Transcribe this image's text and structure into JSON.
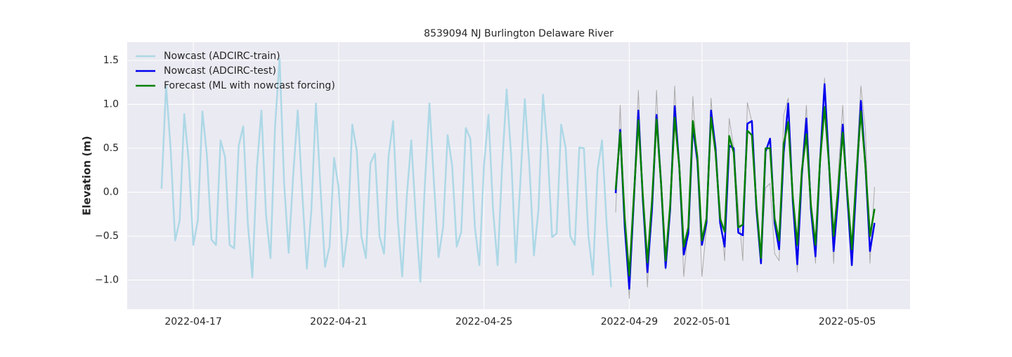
{
  "chart_data": {
    "type": "line",
    "title": "8539094 NJ Burlington Delaware River",
    "ylabel": "Elevation (m)",
    "x": [
      "2022-04-16 03:00",
      "2022-04-16 06:00",
      "2022-04-16 09:00",
      "2022-04-16 12:00",
      "2022-04-16 15:00",
      "2022-04-16 18:00",
      "2022-04-16 21:00",
      "2022-04-17 00:00",
      "2022-04-17 03:00",
      "2022-04-17 06:00",
      "2022-04-17 09:00",
      "2022-04-17 12:00",
      "2022-04-17 15:00",
      "2022-04-17 18:00",
      "2022-04-17 21:00",
      "2022-04-18 00:00",
      "2022-04-18 03:00",
      "2022-04-18 06:00",
      "2022-04-18 09:00",
      "2022-04-18 12:00",
      "2022-04-18 15:00",
      "2022-04-18 18:00",
      "2022-04-18 21:00",
      "2022-04-19 00:00",
      "2022-04-19 03:00",
      "2022-04-19 06:00",
      "2022-04-19 09:00",
      "2022-04-19 12:00",
      "2022-04-19 15:00",
      "2022-04-19 18:00",
      "2022-04-19 21:00",
      "2022-04-20 00:00",
      "2022-04-20 03:00",
      "2022-04-20 06:00",
      "2022-04-20 09:00",
      "2022-04-20 12:00",
      "2022-04-20 15:00",
      "2022-04-20 18:00",
      "2022-04-20 21:00",
      "2022-04-21 00:00",
      "2022-04-21 03:00",
      "2022-04-21 06:00",
      "2022-04-21 09:00",
      "2022-04-21 12:00",
      "2022-04-21 15:00",
      "2022-04-21 18:00",
      "2022-04-21 21:00",
      "2022-04-22 00:00",
      "2022-04-22 03:00",
      "2022-04-22 06:00",
      "2022-04-22 09:00",
      "2022-04-22 12:00",
      "2022-04-22 15:00",
      "2022-04-22 18:00",
      "2022-04-22 21:00",
      "2022-04-23 00:00",
      "2022-04-23 03:00",
      "2022-04-23 06:00",
      "2022-04-23 09:00",
      "2022-04-23 12:00",
      "2022-04-23 15:00",
      "2022-04-23 18:00",
      "2022-04-23 21:00",
      "2022-04-24 00:00",
      "2022-04-24 03:00",
      "2022-04-24 06:00",
      "2022-04-24 09:00",
      "2022-04-24 12:00",
      "2022-04-24 15:00",
      "2022-04-24 18:00",
      "2022-04-24 21:00",
      "2022-04-25 00:00",
      "2022-04-25 03:00",
      "2022-04-25 06:00",
      "2022-04-25 09:00",
      "2022-04-25 12:00",
      "2022-04-25 15:00",
      "2022-04-25 18:00",
      "2022-04-25 21:00",
      "2022-04-26 00:00",
      "2022-04-26 03:00",
      "2022-04-26 06:00",
      "2022-04-26 09:00",
      "2022-04-26 12:00",
      "2022-04-26 15:00",
      "2022-04-26 18:00",
      "2022-04-26 21:00",
      "2022-04-27 00:00",
      "2022-04-27 03:00",
      "2022-04-27 06:00",
      "2022-04-27 09:00",
      "2022-04-27 12:00",
      "2022-04-27 15:00",
      "2022-04-27 18:00",
      "2022-04-27 21:00",
      "2022-04-28 00:00",
      "2022-04-28 03:00",
      "2022-04-28 06:00",
      "2022-04-28 09:00",
      "2022-04-28 12:00",
      "2022-04-28 15:00",
      "2022-04-28 18:00",
      "2022-04-28 21:00",
      "2022-04-29 00:00",
      "2022-04-29 03:00",
      "2022-04-29 06:00",
      "2022-04-29 09:00",
      "2022-04-29 12:00",
      "2022-04-29 15:00",
      "2022-04-29 18:00",
      "2022-04-29 21:00",
      "2022-04-30 00:00",
      "2022-04-30 03:00",
      "2022-04-30 06:00",
      "2022-04-30 09:00",
      "2022-04-30 12:00",
      "2022-04-30 15:00",
      "2022-04-30 18:00",
      "2022-04-30 21:00",
      "2022-05-01 00:00",
      "2022-05-01 03:00",
      "2022-05-01 06:00",
      "2022-05-01 09:00",
      "2022-05-01 12:00",
      "2022-05-01 15:00",
      "2022-05-01 18:00",
      "2022-05-01 21:00",
      "2022-05-02 00:00",
      "2022-05-02 03:00",
      "2022-05-02 06:00",
      "2022-05-02 09:00",
      "2022-05-02 12:00",
      "2022-05-02 15:00",
      "2022-05-02 18:00",
      "2022-05-02 21:00",
      "2022-05-03 00:00",
      "2022-05-03 03:00",
      "2022-05-03 06:00",
      "2022-05-03 09:00",
      "2022-05-03 12:00",
      "2022-05-03 15:00",
      "2022-05-03 18:00",
      "2022-05-03 21:00",
      "2022-05-04 00:00",
      "2022-05-04 03:00",
      "2022-05-04 06:00",
      "2022-05-04 09:00",
      "2022-05-04 12:00",
      "2022-05-04 15:00",
      "2022-05-04 18:00",
      "2022-05-04 21:00",
      "2022-05-05 00:00",
      "2022-05-05 03:00",
      "2022-05-05 06:00",
      "2022-05-05 09:00",
      "2022-05-05 12:00",
      "2022-05-05 15:00",
      "2022-05-05 18:00"
    ],
    "series": [
      {
        "color": "#aaaaaa",
        "values": [
          null,
          null,
          null,
          null,
          null,
          null,
          null,
          null,
          null,
          null,
          null,
          null,
          null,
          null,
          null,
          null,
          null,
          null,
          null,
          null,
          null,
          null,
          null,
          null,
          null,
          null,
          null,
          null,
          null,
          null,
          null,
          null,
          null,
          null,
          null,
          null,
          null,
          null,
          null,
          null,
          null,
          null,
          null,
          null,
          null,
          null,
          null,
          null,
          null,
          null,
          null,
          null,
          null,
          null,
          null,
          null,
          null,
          null,
          null,
          null,
          null,
          null,
          null,
          null,
          null,
          null,
          null,
          null,
          null,
          null,
          null,
          null,
          null,
          null,
          null,
          null,
          null,
          null,
          null,
          null,
          null,
          null,
          null,
          null,
          null,
          null,
          null,
          null,
          null,
          null,
          null,
          null,
          null,
          null,
          null,
          null,
          null,
          null,
          null,
          null,
          -0.23,
          0.99,
          -0.4,
          -1.21,
          0.0,
          1.16,
          -0.1,
          -1.08,
          -0.1,
          1.16,
          0.05,
          -0.88,
          -0.1,
          1.21,
          0.2,
          -0.96,
          -0.4,
          1.09,
          0.3,
          -0.96,
          -0.4,
          1.07,
          0.4,
          -0.18,
          -0.78,
          0.84,
          0.5,
          -0.17,
          -0.78,
          1.02,
          0.8,
          -0.16,
          -0.75,
          0.05,
          0.1,
          -0.7,
          -0.78,
          0.88,
          1.07,
          -0.1,
          -0.91,
          0.3,
          0.99,
          -0.1,
          -0.81,
          0.35,
          1.3,
          0.2,
          -0.81,
          0.2,
          0.99,
          -0.1,
          -0.84,
          0.3,
          1.21,
          0.7,
          -0.81,
          0.06
        ],
        "width": 1
      },
      {
        "name": "Nowcast (ADCIRC-train)",
        "color": "#add8e6",
        "width": 2.5,
        "values": [
          0.04,
          1.22,
          0.5,
          -0.55,
          -0.32,
          0.89,
          0.35,
          -0.6,
          -0.32,
          0.92,
          0.42,
          -0.54,
          -0.6,
          0.59,
          0.4,
          -0.6,
          -0.64,
          0.53,
          0.75,
          -0.35,
          -0.97,
          0.28,
          0.93,
          -0.25,
          -0.75,
          0.75,
          1.52,
          0.1,
          -0.69,
          0.2,
          0.93,
          -0.02,
          -0.87,
          -0.2,
          1.01,
          0.05,
          -0.85,
          -0.62,
          0.39,
          0.05,
          -0.85,
          -0.45,
          0.77,
          0.47,
          -0.5,
          -0.75,
          0.33,
          0.44,
          -0.5,
          -0.7,
          0.41,
          0.81,
          -0.3,
          -0.96,
          -0.05,
          0.59,
          -0.3,
          -1.02,
          0.1,
          1.01,
          0.1,
          -0.74,
          -0.4,
          0.65,
          0.3,
          -0.62,
          -0.45,
          0.73,
          0.61,
          -0.4,
          -0.83,
          0.3,
          0.88,
          -0.2,
          -0.83,
          0.3,
          1.17,
          0.4,
          -0.8,
          0.1,
          1.06,
          0.3,
          -0.72,
          -0.2,
          1.11,
          0.5,
          -0.51,
          -0.47,
          0.77,
          0.5,
          -0.5,
          -0.6,
          0.51,
          0.5,
          -0.5,
          -0.94,
          0.25,
          0.59,
          -0.35,
          -1.08,
          null,
          null,
          null,
          null,
          null,
          null,
          null,
          null,
          null,
          null,
          null,
          null,
          null,
          null,
          null,
          null,
          null,
          null,
          null,
          null,
          null,
          null,
          null,
          null,
          null,
          null,
          null,
          null,
          null,
          null,
          null,
          null,
          null,
          null,
          null,
          null,
          null,
          null,
          null,
          null,
          null,
          null,
          null,
          null,
          null,
          null,
          null,
          null,
          null,
          null,
          null,
          null,
          null,
          null,
          null,
          null,
          null,
          null
        ]
      },
      {
        "name": "Nowcast (ADCIRC-test)",
        "color": "#0000ee",
        "width": 2.5,
        "values": [
          null,
          null,
          null,
          null,
          null,
          null,
          null,
          null,
          null,
          null,
          null,
          null,
          null,
          null,
          null,
          null,
          null,
          null,
          null,
          null,
          null,
          null,
          null,
          null,
          null,
          null,
          null,
          null,
          null,
          null,
          null,
          null,
          null,
          null,
          null,
          null,
          null,
          null,
          null,
          null,
          null,
          null,
          null,
          null,
          null,
          null,
          null,
          null,
          null,
          null,
          null,
          null,
          null,
          null,
          null,
          null,
          null,
          null,
          null,
          null,
          null,
          null,
          null,
          null,
          null,
          null,
          null,
          null,
          null,
          null,
          null,
          null,
          null,
          null,
          null,
          null,
          null,
          null,
          null,
          null,
          null,
          null,
          null,
          null,
          null,
          null,
          null,
          null,
          null,
          null,
          null,
          null,
          null,
          null,
          null,
          null,
          null,
          null,
          null,
          null,
          -0.01,
          0.71,
          -0.4,
          -1.1,
          -0.1,
          0.93,
          -0.1,
          -0.91,
          -0.2,
          0.88,
          0.1,
          -0.86,
          -0.2,
          0.98,
          0.3,
          -0.71,
          -0.47,
          0.75,
          0.35,
          -0.6,
          -0.35,
          0.93,
          0.5,
          -0.35,
          -0.62,
          0.53,
          0.5,
          -0.46,
          -0.49,
          0.78,
          0.81,
          -0.2,
          -0.81,
          0.46,
          0.61,
          -0.35,
          -0.65,
          0.45,
          1.01,
          -0.1,
          -0.82,
          0.2,
          0.84,
          -0.2,
          -0.73,
          0.35,
          1.23,
          0.3,
          -0.67,
          -0.05,
          0.77,
          -0.05,
          -0.83,
          0.1,
          1.04,
          0.3,
          -0.67,
          -0.35
        ]
      },
      {
        "name": "Forecast (ML with nowcast forcing)",
        "color": "#008000",
        "width": 2.5,
        "values": [
          null,
          null,
          null,
          null,
          null,
          null,
          null,
          null,
          null,
          null,
          null,
          null,
          null,
          null,
          null,
          null,
          null,
          null,
          null,
          null,
          null,
          null,
          null,
          null,
          null,
          null,
          null,
          null,
          null,
          null,
          null,
          null,
          null,
          null,
          null,
          null,
          null,
          null,
          null,
          null,
          null,
          null,
          null,
          null,
          null,
          null,
          null,
          null,
          null,
          null,
          null,
          null,
          null,
          null,
          null,
          null,
          null,
          null,
          null,
          null,
          null,
          null,
          null,
          null,
          null,
          null,
          null,
          null,
          null,
          null,
          null,
          null,
          null,
          null,
          null,
          null,
          null,
          null,
          null,
          null,
          null,
          null,
          null,
          null,
          null,
          null,
          null,
          null,
          null,
          null,
          null,
          null,
          null,
          null,
          null,
          null,
          null,
          null,
          null,
          null,
          0.03,
          0.68,
          -0.3,
          -0.95,
          -0.05,
          0.82,
          -0.05,
          -0.8,
          -0.1,
          0.83,
          0.1,
          -0.78,
          -0.15,
          0.85,
          0.3,
          -0.62,
          -0.4,
          0.81,
          0.4,
          -0.55,
          -0.3,
          0.85,
          0.45,
          -0.3,
          -0.45,
          0.64,
          0.45,
          -0.4,
          -0.37,
          0.7,
          0.65,
          -0.15,
          -0.75,
          0.5,
          0.5,
          -0.3,
          -0.55,
          0.55,
          0.8,
          -0.05,
          -0.6,
          0.25,
          0.66,
          -0.15,
          -0.6,
          0.35,
          0.97,
          0.3,
          -0.5,
          0.05,
          0.68,
          0.0,
          -0.65,
          0.2,
          0.92,
          0.3,
          -0.5,
          -0.19
        ]
      }
    ],
    "xlim": [
      "2022-04-15 04:20",
      "2022-05-06 17:30"
    ],
    "xticks": [
      "2022-04-17",
      "2022-04-21",
      "2022-04-25",
      "2022-04-29",
      "2022-05-01",
      "2022-05-05"
    ],
    "ylim": [
      -1.332,
      1.708
    ],
    "yticks": [
      {
        "value": -1.0,
        "label": "−1.0"
      },
      {
        "value": -0.5,
        "label": "−0.5"
      },
      {
        "value": 0.0,
        "label": "0.0"
      },
      {
        "value": 0.5,
        "label": "0.5"
      },
      {
        "value": 1.0,
        "label": "1.0"
      },
      {
        "value": 1.5,
        "label": "1.5"
      }
    ],
    "grid": true,
    "legend": "upper left"
  }
}
